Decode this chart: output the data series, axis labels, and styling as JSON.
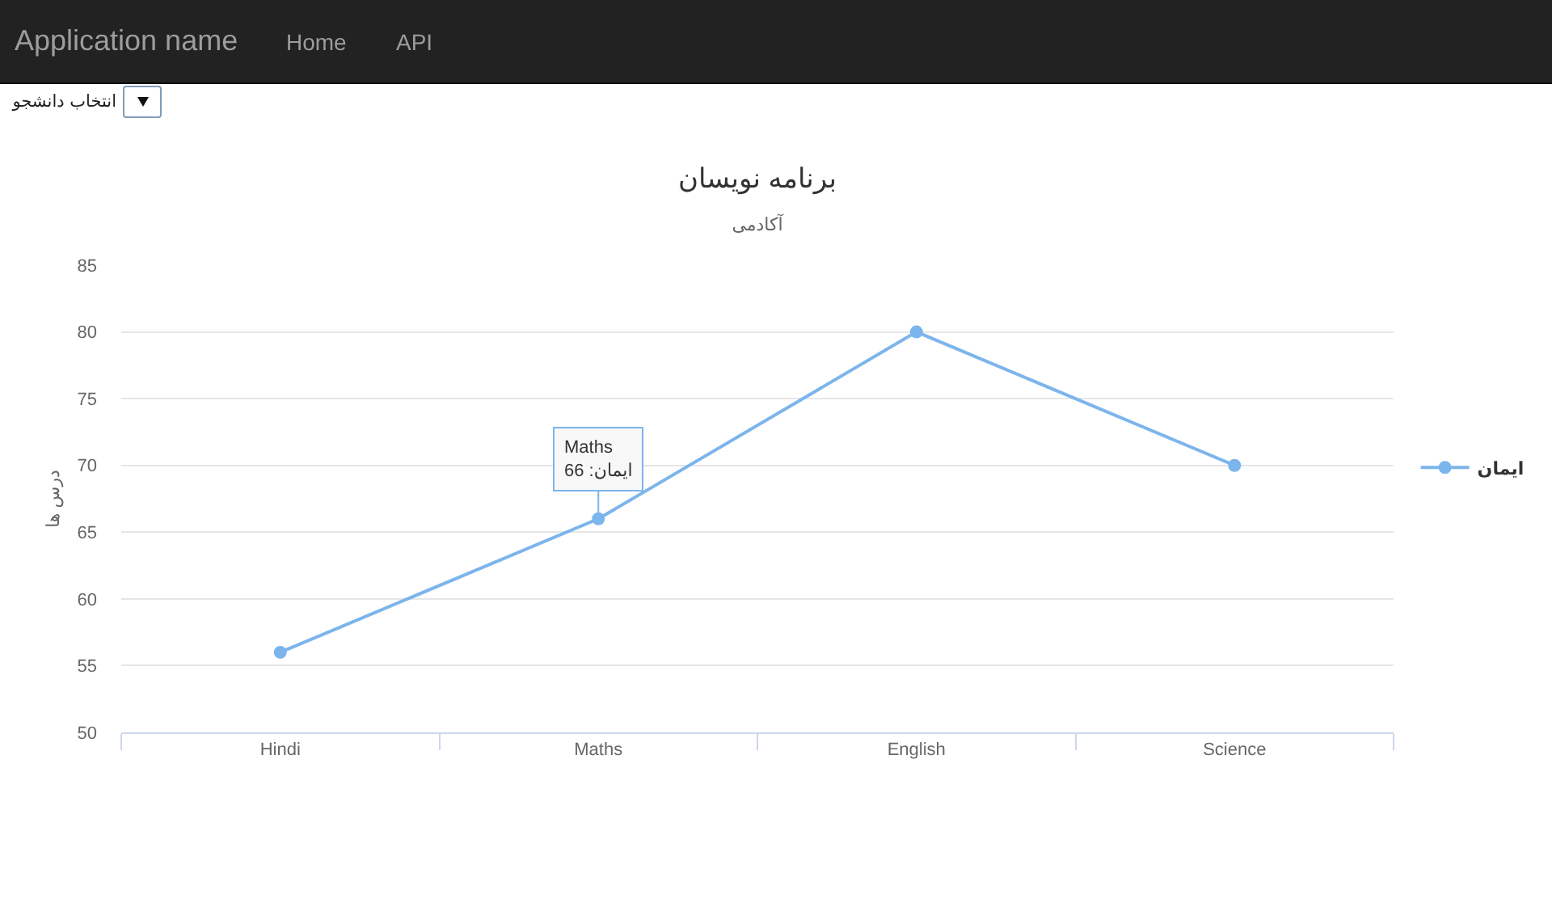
{
  "chart_data": {
    "type": "line",
    "title": "برنامه نویسان",
    "subtitle": "آکادمی",
    "ylabel": "درس ها",
    "annotations": [
      "Application name",
      "Home",
      "API",
      "انتخاب دانشجو",
      {
        "text": "Maths\nایمان: 66",
        "x": "Maths",
        "y": 66
      }
    ],
    "categories": [
      "Hindi",
      "Maths",
      "English",
      "Science"
    ],
    "series": [
      {
        "name": "ایمان",
        "color": "#7cb5ec",
        "values": [
          56,
          66,
          80,
          70
        ]
      }
    ],
    "ylim": [
      50,
      85
    ],
    "yticks": [
      50,
      55,
      60,
      65,
      70,
      75,
      80,
      85
    ],
    "grid": "y",
    "legend": "right",
    "marker": "circle"
  }
}
